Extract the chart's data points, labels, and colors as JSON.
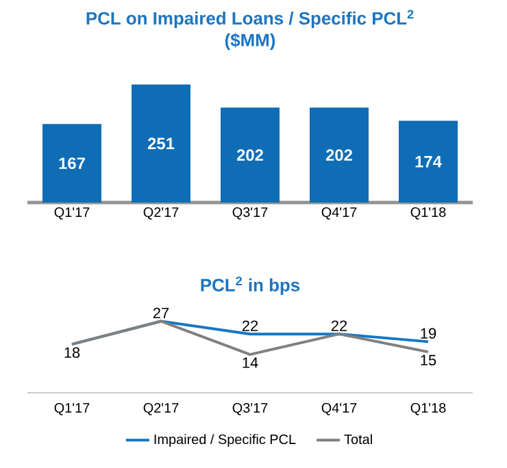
{
  "chart_data": [
    {
      "type": "bar",
      "title": "PCL on Impaired Loans / Specific PCL$^{2}$",
      "subtitle": "($MM)",
      "categories": [
        "Q1'17",
        "Q2'17",
        "Q3'17",
        "Q4'17",
        "Q1'18"
      ],
      "values": [
        167,
        251,
        202,
        202,
        174
      ],
      "color": "#0f6db5",
      "data_labels": true
    },
    {
      "type": "line",
      "title": "PCL$^{2}$ in bps",
      "categories": [
        "Q1'17",
        "Q2'17",
        "Q3'17",
        "Q4'17",
        "Q1'18"
      ],
      "legend": "bottom",
      "series": [
        {
          "name": "Impaired / Specific PCL",
          "color": "#1477c4",
          "values": [
            18,
            27,
            22,
            22,
            19
          ],
          "value_labels": [
            "18",
            "27",
            "22",
            "22",
            "19"
          ]
        },
        {
          "name": "Total",
          "color": "#808080",
          "values": [
            18,
            27,
            14,
            22,
            15
          ],
          "value_labels": [
            null,
            null,
            "14",
            null,
            "15"
          ]
        }
      ]
    }
  ]
}
